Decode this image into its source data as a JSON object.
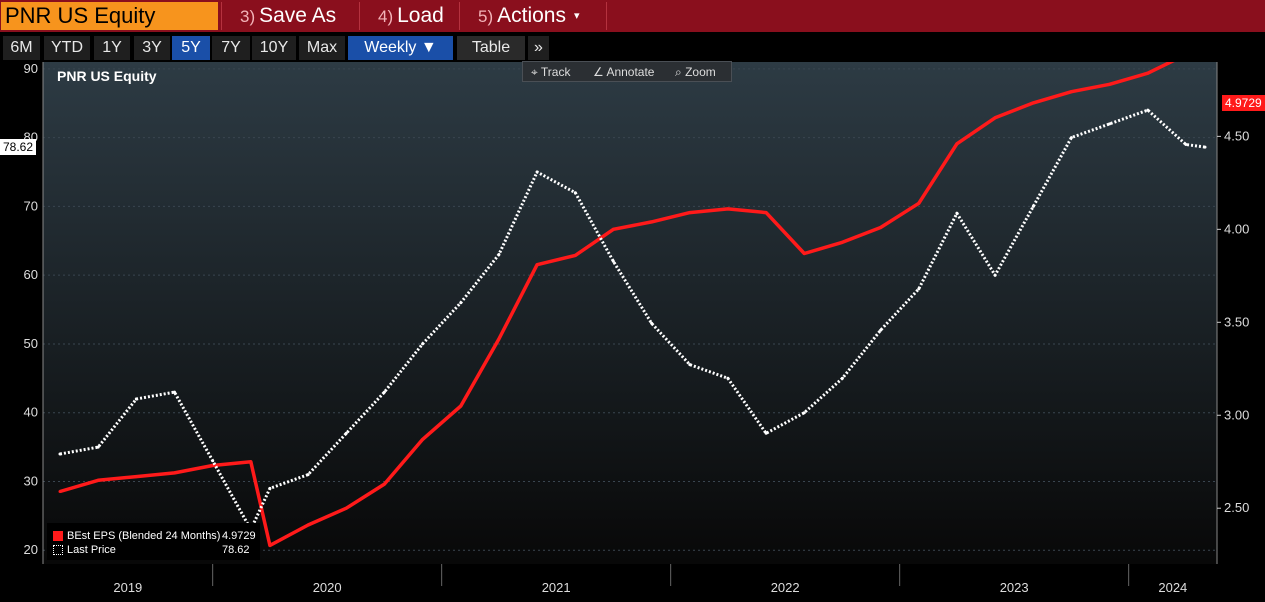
{
  "ticker": "PNR US Equity",
  "top_buttons": [
    {
      "num": "3)",
      "label": "Save As"
    },
    {
      "num": "4)",
      "label": "Load"
    },
    {
      "num": "5)",
      "label": "Actions",
      "caret": "▾"
    }
  ],
  "ranges": [
    "6M",
    "YTD",
    "1Y",
    "3Y",
    "5Y",
    "7Y",
    "10Y",
    "Max"
  ],
  "active_range": "5Y",
  "frequency": "Weekly ▼",
  "table_label": "Table",
  "more_label": "»",
  "chart_tools": [
    {
      "icon": "crosshair-icon",
      "glyph": "⌖",
      "label": "Track"
    },
    {
      "icon": "annotate-icon",
      "glyph": "∠",
      "label": "Annotate"
    },
    {
      "icon": "zoom-icon",
      "glyph": "⌕",
      "label": "Zoom"
    }
  ],
  "colors": {
    "eps": "#ff1a1a",
    "price": "#ffffff",
    "topbar": "#8a0f1d",
    "ticker_bg": "#f7941d",
    "active": "#1a4fa8"
  },
  "chart_data": {
    "type": "line",
    "title": "PNR US Equity",
    "x": [
      "2019-05",
      "2019-07",
      "2019-09",
      "2019-11",
      "2020-01",
      "2020-03",
      "2020-04",
      "2020-06",
      "2020-08",
      "2020-10",
      "2020-12",
      "2021-02",
      "2021-04",
      "2021-06",
      "2021-08",
      "2021-10",
      "2021-12",
      "2022-02",
      "2022-04",
      "2022-06",
      "2022-08",
      "2022-10",
      "2022-12",
      "2023-02",
      "2023-04",
      "2023-06",
      "2023-08",
      "2023-10",
      "2023-12",
      "2024-02",
      "2024-04",
      "2024-05"
    ],
    "x_tick_labels": [
      "2019",
      "2020",
      "2021",
      "2022",
      "2023",
      "2024"
    ],
    "ylim_left": [
      18,
      91
    ],
    "yticks_left": [
      20,
      30,
      40,
      50,
      60,
      70,
      80,
      90
    ],
    "ylim_right": [
      2.2,
      4.9
    ],
    "yticks_right": [
      2.5,
      3.0,
      3.5,
      4.0,
      4.5
    ],
    "yticks_right_labels": [
      "2.50",
      "3.00",
      "3.50",
      "4.00",
      "4.50"
    ],
    "series": [
      {
        "name": "BEst EPS (Blended 24 Months)",
        "axis": "right",
        "last": "4.9729",
        "style": "solid",
        "values": [
          2.59,
          2.65,
          2.67,
          2.69,
          2.73,
          2.75,
          2.3,
          2.41,
          2.5,
          2.63,
          2.87,
          3.05,
          3.41,
          3.81,
          3.86,
          4.0,
          4.04,
          4.09,
          4.11,
          4.09,
          3.87,
          3.93,
          4.01,
          4.14,
          4.46,
          4.6,
          4.68,
          4.74,
          4.78,
          4.84,
          4.94,
          4.97
        ]
      },
      {
        "name": "Last Price",
        "axis": "left",
        "last": "78.62",
        "style": "dotted",
        "values": [
          34,
          35,
          42,
          43,
          33,
          23,
          29,
          31,
          37,
          43,
          50,
          56,
          63,
          75,
          72,
          62,
          53,
          47,
          45,
          37,
          40,
          45,
          52,
          58,
          69,
          60,
          70,
          80,
          82,
          84,
          79,
          78.62
        ]
      }
    ],
    "grid": true,
    "legend": "bottom-left"
  }
}
